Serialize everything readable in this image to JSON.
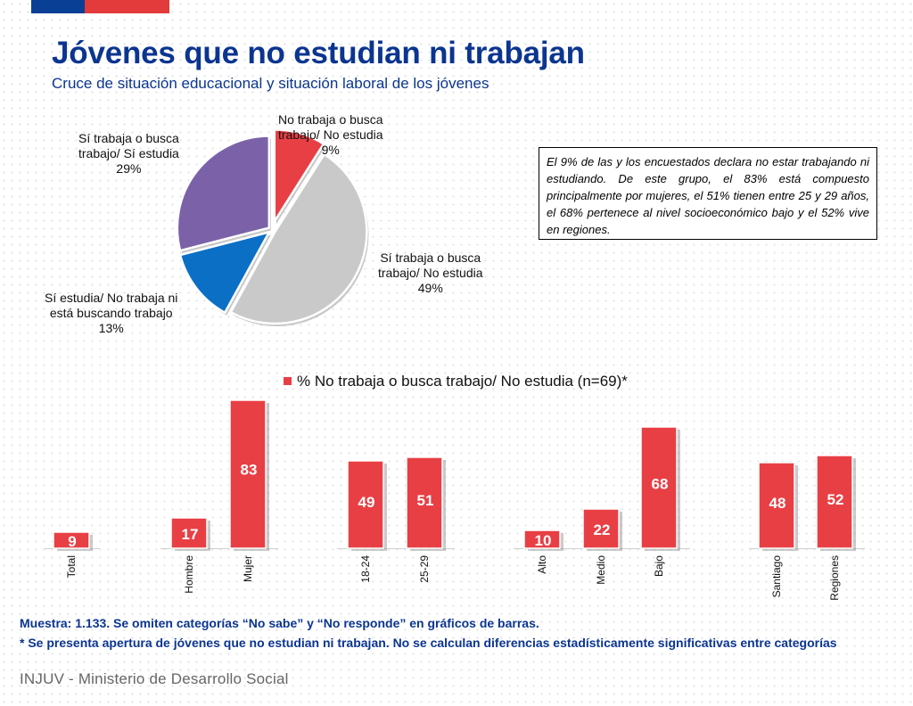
{
  "header": {
    "title": "Jóvenes que no estudian ni trabajan",
    "subtitle": "Cruce de situación educacional y situación laboral de los jóvenes"
  },
  "colors": {
    "navy": "#0b3590",
    "red": "#e83f45",
    "blue": "#0b6fc6",
    "gray": "#c9c9c9",
    "purple": "#7b62a8"
  },
  "note": "El 9% de las y los encuestados declara no estar trabajando ni estudiando. De este grupo, el 83% está compuesto principalmente por mujeres, el 51% tienen entre 25 y 29 años, el 68% pertenece al nivel socioeconómico bajo y el 52% vive en regiones.",
  "footer": {
    "line1": "Muestra: 1.133. Se omiten categorías “No sabe” y “No responde” en gráficos de barras.",
    "line2": "* Se presenta apertura de jóvenes que no estudian ni trabajan. No se calculan diferencias estadísticamente significativas entre categorías",
    "brand": "INJUV - Ministerio de Desarrollo Social"
  },
  "chart_data": [
    {
      "type": "pie",
      "slices": [
        {
          "label_lines": [
            "No trabaja o busca",
            "trabajo/ No estudia"
          ],
          "value": 9,
          "value_label": "9%",
          "color": "#e83f45"
        },
        {
          "label_lines": [
            "Sí trabaja o busca",
            "trabajo/ No estudia"
          ],
          "value": 49,
          "value_label": "49%",
          "color": "#c9c9c9"
        },
        {
          "label_lines": [
            "Sí estudia/ No trabaja ni",
            "está buscando trabajo"
          ],
          "value": 13,
          "value_label": "13%",
          "color": "#0b6fc6"
        },
        {
          "label_lines": [
            "Sí trabaja o busca",
            "trabajo/ Sí estudia"
          ],
          "value": 29,
          "value_label": "29%",
          "color": "#7b62a8"
        }
      ]
    },
    {
      "type": "bar",
      "legend": "% No trabaja o busca trabajo/ No estudia (n=69)*",
      "categories": [
        "Total",
        "Hombre",
        "Mujer",
        "18-24",
        "25-29",
        "Alto",
        "Medio",
        "Bajo",
        "Santiago",
        "Regiones"
      ],
      "values": [
        9,
        17,
        83,
        49,
        51,
        10,
        22,
        68,
        48,
        52
      ],
      "ylim": [
        0,
        100
      ],
      "grid": false
    }
  ]
}
